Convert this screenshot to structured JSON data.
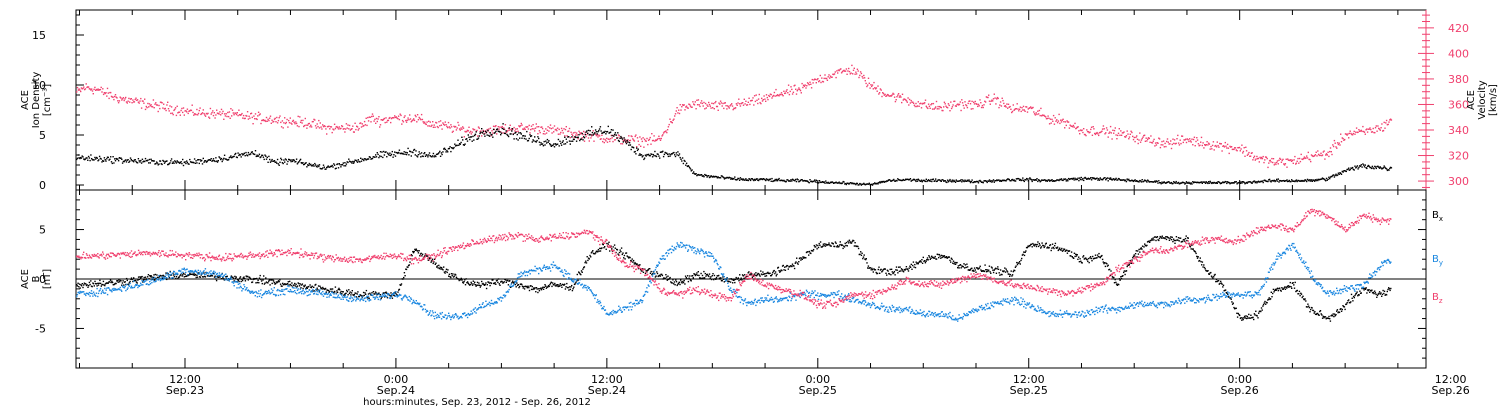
{
  "figure": {
    "xlabel": "hours:minutes, Sep. 23, 2012 - Sep. 26, 2012",
    "time_ticks": [
      {
        "hours": 12,
        "time": "12:00",
        "date": "Sep.23"
      },
      {
        "hours": 24,
        "time": "0:00",
        "date": "Sep.24"
      },
      {
        "hours": 36,
        "time": "12:00",
        "date": "Sep.24"
      },
      {
        "hours": 48,
        "time": "0:00",
        "date": "Sep.25"
      },
      {
        "hours": 60,
        "time": "12:00",
        "date": "Sep.25"
      },
      {
        "hours": 72,
        "time": "0:00",
        "date": "Sep.26"
      },
      {
        "hours": 84,
        "time": "12:00",
        "date": "Sep.26"
      }
    ],
    "xlim_hours": [
      5.8,
      82.6
    ],
    "colors": {
      "axis": "#000000",
      "black": "#000000",
      "blue": "#1a87e0",
      "pink": "#f0406e"
    }
  },
  "chart_data": [
    {
      "type": "scatter",
      "panel": "top",
      "ylabel_left": [
        "ACE",
        "Ion Density",
        "[cm⁻³]"
      ],
      "ylabel_right": [
        "ACE",
        "Velocity",
        "[km/s]"
      ],
      "ylim_left": [
        -0.5,
        17.5
      ],
      "ylim_right": [
        293,
        434
      ],
      "yticks_left": [
        0,
        5,
        10,
        15
      ],
      "yticks_right": [
        300,
        320,
        340,
        360,
        380,
        400,
        420
      ],
      "series": [
        {
          "axis": "left",
          "color": "black",
          "x": [
            5.8,
            8,
            10,
            12,
            14,
            16,
            17,
            18,
            19,
            20,
            21,
            22,
            23,
            24,
            25,
            26,
            27,
            28,
            29,
            30,
            31,
            32,
            33,
            34,
            35,
            36,
            37,
            38,
            39,
            40,
            41,
            42,
            43,
            44,
            45,
            46,
            47,
            48,
            49,
            50,
            51,
            52,
            53,
            54,
            55,
            56,
            57,
            58,
            59,
            60,
            61,
            62,
            63,
            64,
            65,
            66,
            67,
            68,
            69,
            70,
            71,
            72,
            73,
            74,
            75,
            76,
            77,
            78,
            79,
            80,
            80.6
          ],
          "y": [
            2.8,
            2.6,
            2.4,
            2.3,
            2.7,
            3.3,
            2.3,
            2.5,
            2.1,
            1.8,
            2.2,
            2.6,
            3.0,
            3.2,
            3.4,
            2.9,
            3.6,
            4.6,
            5.4,
            5.6,
            5.0,
            4.5,
            4.2,
            4.7,
            5.2,
            5.6,
            4.4,
            3.0,
            3.2,
            3.1,
            1.1,
            0.9,
            0.7,
            0.6,
            0.6,
            0.5,
            0.5,
            0.4,
            0.3,
            0.2,
            0.1,
            0.5,
            0.6,
            0.5,
            0.5,
            0.5,
            0.4,
            0.5,
            0.6,
            0.6,
            0.5,
            0.6,
            0.7,
            0.7,
            0.6,
            0.5,
            0.4,
            0.3,
            0.3,
            0.3,
            0.3,
            0.3,
            0.4,
            0.5,
            0.5,
            0.5,
            0.7,
            1.5,
            2.0,
            1.8,
            1.7
          ]
        },
        {
          "axis": "right",
          "color": "pink",
          "x": [
            5.8,
            6.3,
            7,
            8,
            9,
            10,
            11,
            12,
            13,
            14,
            15,
            16,
            17,
            18,
            19,
            20,
            21,
            22,
            22.5,
            23,
            24,
            24.5,
            25,
            26,
            27,
            28,
            29,
            30,
            31,
            32,
            33,
            34,
            35,
            36,
            37,
            38,
            39,
            40,
            41,
            42,
            43,
            44,
            45,
            46,
            47,
            48,
            49,
            50,
            51,
            52,
            53,
            54,
            55,
            56,
            57,
            58,
            59,
            60,
            61,
            62,
            63,
            64,
            65,
            66,
            67,
            68,
            69,
            70,
            71,
            72,
            73,
            74,
            75,
            76,
            77,
            78,
            79,
            80,
            80.6
          ],
          "y": [
            370,
            374,
            372,
            366,
            363,
            360,
            358,
            355,
            354,
            353,
            352,
            350,
            349,
            347,
            346,
            342,
            342,
            343,
            350,
            348,
            350,
            350,
            350,
            345,
            343,
            340,
            340,
            341,
            342,
            342,
            340,
            338,
            336,
            334,
            333,
            332,
            333,
            356,
            361,
            359,
            359,
            362,
            365,
            370,
            372,
            380,
            385,
            388,
            375,
            368,
            364,
            360,
            358,
            361,
            360,
            365,
            357,
            357,
            350,
            347,
            340,
            340,
            338,
            335,
            332,
            330,
            333,
            330,
            328,
            326,
            318,
            315,
            316,
            320,
            322,
            337,
            339,
            342,
            349
          ]
        }
      ]
    },
    {
      "type": "scatter",
      "panel": "bottom",
      "ylabel_left": [
        "ACE",
        "B",
        "[nT]"
      ],
      "ylim": [
        -9,
        9
      ],
      "yticks": [
        -5,
        0,
        5
      ],
      "legend": [
        {
          "label": "Bx",
          "main": "B",
          "sub": "x",
          "color": "black"
        },
        {
          "label": "By",
          "main": "B",
          "sub": "y",
          "color": "blue"
        },
        {
          "label": "Bz",
          "main": "B",
          "sub": "z",
          "color": "pink"
        }
      ],
      "series": [
        {
          "name": "Bx",
          "color": "black",
          "x": [
            5.8,
            8,
            10,
            12,
            14,
            16,
            18,
            20,
            22,
            24,
            25,
            26,
            27,
            28,
            29,
            30,
            31,
            32,
            33,
            34,
            35,
            36,
            37,
            38,
            39,
            40,
            41,
            42,
            43,
            44,
            45,
            46,
            47,
            48,
            49,
            50,
            51,
            52,
            53,
            54,
            55,
            56,
            57,
            58,
            59,
            60,
            61,
            62,
            63,
            64,
            65,
            66,
            67,
            68,
            69,
            70,
            71,
            72,
            73,
            74,
            75,
            76,
            77,
            78,
            79,
            80,
            80.6
          ],
          "y": [
            -0.5,
            -0.3,
            0.2,
            0.5,
            0.3,
            0,
            -0.5,
            -1.0,
            -1.5,
            -1.5,
            3.0,
            2.0,
            0.5,
            -0.3,
            -0.5,
            -0.2,
            -0.5,
            -1.0,
            -0.5,
            -0.8,
            2.5,
            3.5,
            2.5,
            1.0,
            0.5,
            -0.5,
            0.5,
            0.3,
            -0.2,
            0.5,
            0.5,
            1.0,
            2.0,
            3.5,
            3.5,
            3.8,
            1.0,
            0.8,
            1.0,
            2.0,
            2.5,
            1.5,
            1.0,
            1.0,
            0.5,
            3.5,
            3.5,
            3.0,
            2.0,
            2.5,
            -0.5,
            2.5,
            4.2,
            4.2,
            4.0,
            1.0,
            -0.5,
            -4.0,
            -3.5,
            -1.0,
            -0.5,
            -3.0,
            -4.0,
            -2.5,
            -1.0,
            -1.5,
            -1.0
          ]
        },
        {
          "name": "By",
          "color": "blue",
          "x": [
            5.8,
            8,
            10,
            12,
            14,
            16,
            18,
            20,
            22,
            24,
            25,
            26,
            27,
            28,
            29,
            30,
            31,
            32,
            33,
            34,
            35,
            36,
            37,
            38,
            39,
            40,
            41,
            42,
            43,
            44,
            45,
            46,
            47,
            48,
            49,
            50,
            51,
            52,
            53,
            54,
            55,
            56,
            57,
            58,
            59,
            60,
            61,
            62,
            63,
            64,
            65,
            66,
            67,
            68,
            69,
            70,
            71,
            72,
            73,
            74,
            75,
            76,
            77,
            78,
            79,
            80,
            80.6
          ],
          "y": [
            -1.5,
            -1.0,
            -0.2,
            1.0,
            0.5,
            -1.5,
            -1.0,
            -1.5,
            -2.0,
            -1.5,
            -2.0,
            -3.5,
            -3.8,
            -3.5,
            -2.5,
            -2.0,
            0.5,
            1.0,
            1.5,
            0,
            -1.0,
            -3.5,
            -3.0,
            -2.0,
            2.0,
            3.5,
            3.0,
            2.5,
            -1.0,
            -2.5,
            -2.0,
            -2.0,
            -1.5,
            -1.5,
            -1.5,
            -2.0,
            -2.5,
            -3.0,
            -3.0,
            -3.5,
            -3.5,
            -4.0,
            -3.0,
            -2.5,
            -2.0,
            -2.5,
            -3.5,
            -3.5,
            -3.5,
            -3.0,
            -3.0,
            -2.5,
            -2.5,
            -2.5,
            -2.0,
            -2.0,
            -1.5,
            -1.5,
            -1.5,
            2.0,
            3.5,
            0.5,
            -1.5,
            -1.0,
            -0.5,
            1.5,
            2.0
          ]
        },
        {
          "name": "Bz",
          "color": "pink",
          "x": [
            5.8,
            8,
            10,
            12,
            14,
            16,
            18,
            20,
            22,
            24,
            25,
            26,
            27,
            28,
            29,
            30,
            31,
            32,
            33,
            34,
            35,
            36,
            37,
            38,
            39,
            40,
            41,
            42,
            43,
            44,
            45,
            46,
            47,
            48,
            49,
            50,
            51,
            52,
            53,
            54,
            55,
            56,
            57,
            58,
            59,
            60,
            61,
            62,
            63,
            64,
            65,
            66,
            67,
            68,
            69,
            70,
            71,
            72,
            73,
            74,
            75,
            76,
            77,
            78,
            79,
            80,
            80.6
          ],
          "y": [
            2.3,
            2.5,
            2.7,
            2.5,
            2.2,
            2.5,
            2.8,
            2.2,
            2.0,
            2.5,
            2.0,
            2.3,
            3.0,
            3.5,
            4.0,
            4.2,
            4.5,
            4.0,
            4.3,
            4.5,
            4.8,
            3.5,
            1.5,
            1.0,
            -1.0,
            -1.5,
            -1.0,
            -1.5,
            -2.0,
            0.5,
            -0.5,
            -1.0,
            -1.5,
            -2.5,
            -2.5,
            -1.5,
            -1.5,
            -1.0,
            0,
            -0.5,
            -0.5,
            0,
            0.5,
            0,
            -0.5,
            -0.8,
            -1.0,
            -1.5,
            -1.0,
            -0.5,
            1.0,
            2.0,
            3.0,
            3.0,
            3.5,
            4.0,
            4.0,
            4.0,
            5.0,
            5.5,
            5.0,
            7.0,
            6.5,
            5.0,
            6.5,
            6.0,
            6.0
          ]
        }
      ]
    }
  ]
}
